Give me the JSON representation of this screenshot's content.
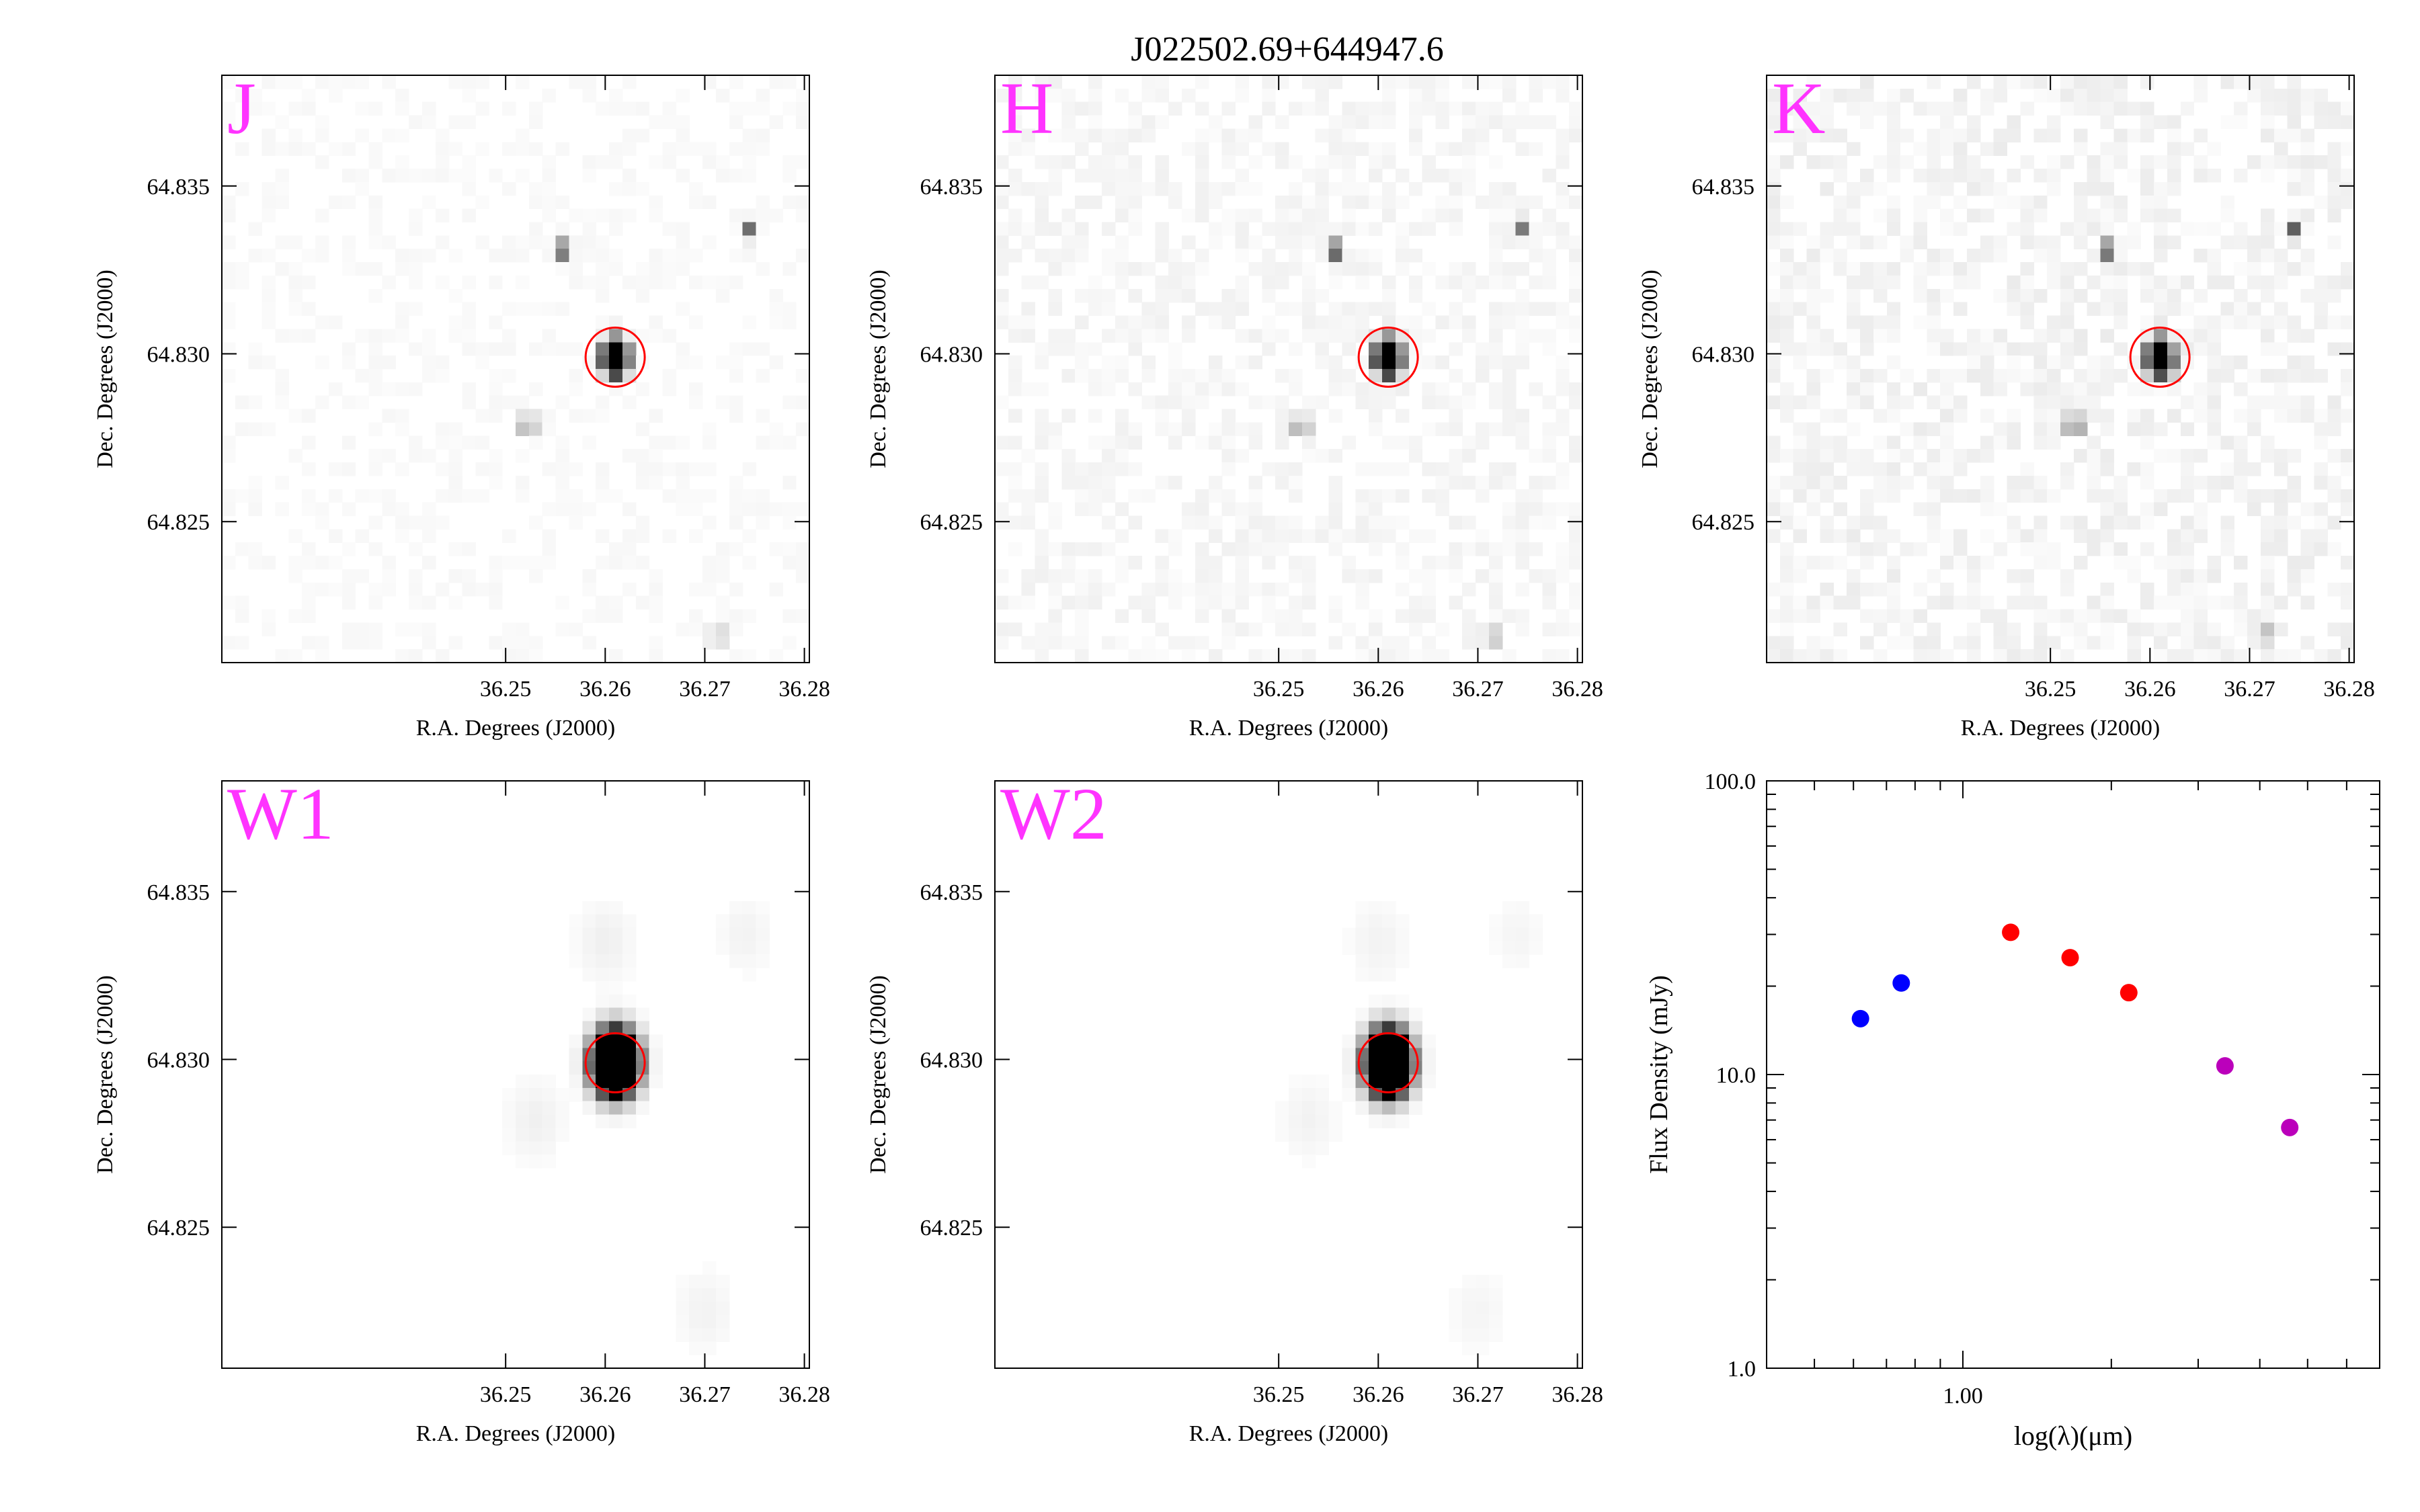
{
  "figure": {
    "title": "J022502.69+644947.6",
    "cutout_x_label": "R.A. Degrees (J2000)",
    "cutout_y_label": "Dec. Degrees (J2000)",
    "cutout_x_ticks": [
      "36.25",
      "36.26",
      "36.27",
      "36.28"
    ],
    "cutout_y_ticks": [
      "64.835",
      "64.830",
      "64.825"
    ],
    "ra_range": [
      36.2215,
      36.2805
    ],
    "dec_range": [
      64.8208,
      64.8383
    ],
    "marker_color": "#ff0000",
    "label_color": "#ff33ff"
  },
  "panels": [
    {
      "band": "J",
      "style": "sharp",
      "noise": 0.045,
      "target": {
        "ra": 36.261,
        "dec": 64.8299
      },
      "sources": [
        {
          "ra": 36.2559,
          "dec": 64.8331,
          "amp": 0.9,
          "sigma": 0.00042
        },
        {
          "ra": 36.2746,
          "dec": 64.8337,
          "amp": 0.6,
          "sigma": 0.0004
        },
        {
          "ra": 36.2523,
          "dec": 64.8279,
          "amp": 0.85,
          "sigma": 0.00042
        },
        {
          "ra": 36.2712,
          "dec": 64.8216,
          "amp": 0.55,
          "sigma": 0.0004
        }
      ]
    },
    {
      "band": "H",
      "style": "sharp",
      "noise": 0.08,
      "target": {
        "ra": 36.261,
        "dec": 64.8299
      },
      "sources": [
        {
          "ra": 36.2559,
          "dec": 64.8331,
          "amp": 0.95,
          "sigma": 0.00042
        },
        {
          "ra": 36.2746,
          "dec": 64.8337,
          "amp": 0.55,
          "sigma": 0.0004
        },
        {
          "ra": 36.2523,
          "dec": 64.8279,
          "amp": 0.9,
          "sigma": 0.00042
        },
        {
          "ra": 36.2712,
          "dec": 64.8216,
          "amp": 0.7,
          "sigma": 0.00042
        }
      ]
    },
    {
      "band": "K",
      "style": "sharp",
      "noise": 0.11,
      "target": {
        "ra": 36.261,
        "dec": 64.8299
      },
      "sources": [
        {
          "ra": 36.2559,
          "dec": 64.8331,
          "amp": 0.9,
          "sigma": 0.00042
        },
        {
          "ra": 36.2746,
          "dec": 64.8337,
          "amp": 0.6,
          "sigma": 0.00042
        },
        {
          "ra": 36.2523,
          "dec": 64.8279,
          "amp": 1.0,
          "sigma": 0.00045
        },
        {
          "ra": 36.2712,
          "dec": 64.8216,
          "amp": 0.75,
          "sigma": 0.00042
        }
      ]
    },
    {
      "band": "W1",
      "style": "smooth",
      "noise": 0.0,
      "target": {
        "ra": 36.261,
        "dec": 64.8299
      },
      "sources": [
        {
          "ra": 36.26,
          "dec": 64.8335,
          "amp": 0.06,
          "sigma": 0.002
        },
        {
          "ra": 36.274,
          "dec": 64.8337,
          "amp": 0.05,
          "sigma": 0.0018
        },
        {
          "ra": 36.253,
          "dec": 64.8282,
          "amp": 0.06,
          "sigma": 0.002
        },
        {
          "ra": 36.27,
          "dec": 64.8225,
          "amp": 0.05,
          "sigma": 0.002
        }
      ]
    },
    {
      "band": "W2",
      "style": "smooth",
      "noise": 0.0,
      "target": {
        "ra": 36.261,
        "dec": 64.8299
      },
      "sources": [
        {
          "ra": 36.26,
          "dec": 64.8335,
          "amp": 0.05,
          "sigma": 0.002
        },
        {
          "ra": 36.274,
          "dec": 64.8337,
          "amp": 0.04,
          "sigma": 0.0018
        },
        {
          "ra": 36.253,
          "dec": 64.8282,
          "amp": 0.05,
          "sigma": 0.002
        },
        {
          "ra": 36.27,
          "dec": 64.8225,
          "amp": 0.04,
          "sigma": 0.002
        }
      ]
    }
  ],
  "chart_data": {
    "type": "scatter",
    "title": "",
    "xlabel": "log(λ)(μm)",
    "ylabel": "Flux Density (mJy)",
    "x_scale": "log",
    "y_scale": "log",
    "xlim": [
      0.4,
      7.0
    ],
    "ylim": [
      1.0,
      100.0
    ],
    "x_tick_labels": [
      {
        "value": 1.0,
        "label": "1.00"
      }
    ],
    "y_tick_labels": [
      {
        "value": 1.0,
        "label": "1.0"
      },
      {
        "value": 10.0,
        "label": "10.0"
      },
      {
        "value": 100.0,
        "label": "100.0"
      }
    ],
    "series": [
      {
        "color": "#0000ff",
        "points": [
          {
            "x": 0.62,
            "y": 15.5
          },
          {
            "x": 0.75,
            "y": 20.5
          }
        ]
      },
      {
        "color": "#ff0000",
        "points": [
          {
            "x": 1.25,
            "y": 30.5
          },
          {
            "x": 1.65,
            "y": 25.0
          },
          {
            "x": 2.17,
            "y": 19.0
          }
        ]
      },
      {
        "color": "#bb00bb",
        "points": [
          {
            "x": 3.4,
            "y": 10.7
          },
          {
            "x": 4.6,
            "y": 6.6
          }
        ]
      }
    ]
  }
}
